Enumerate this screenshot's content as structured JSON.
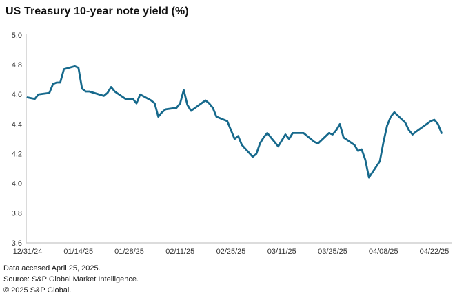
{
  "title": "US Treasury 10-year note yield (%)",
  "footer": {
    "line1": "Data accesed April 25, 2025.",
    "line2": "Source: S&P Global Market Intelligence.",
    "line3": "© 2025 S&P Global."
  },
  "colors": {
    "line": "#16698C",
    "axis": "#c6c6c6",
    "tick_text": "#333333"
  },
  "chart_data": {
    "type": "line",
    "title": "US Treasury 10-year note yield (%)",
    "xlabel": "",
    "ylabel": "",
    "ylim": [
      3.6,
      5.0
    ],
    "y_tick_labels": [
      "5.0",
      "4.8",
      "4.6",
      "4.4",
      "4.2",
      "4.0",
      "3.8",
      "3.6"
    ],
    "x_tick_labels": [
      "12/31/24",
      "01/14/25",
      "01/28/25",
      "02/11/25",
      "02/25/25",
      "03/11/25",
      "03/25/25",
      "04/08/25",
      "04/22/25"
    ],
    "grid": false,
    "legend": "none",
    "series": [
      {
        "name": "US Treasury 10-year note yield (%)",
        "dates": [
          "12/31/24",
          "01/02/25",
          "01/03/25",
          "01/06/25",
          "01/07/25",
          "01/08/25",
          "01/09/25",
          "01/10/25",
          "01/13/25",
          "01/14/25",
          "01/15/25",
          "01/16/25",
          "01/17/25",
          "01/21/25",
          "01/22/25",
          "01/23/25",
          "01/24/25",
          "01/27/25",
          "01/28/25",
          "01/29/25",
          "01/30/25",
          "01/31/25",
          "02/03/25",
          "02/04/25",
          "02/05/25",
          "02/06/25",
          "02/07/25",
          "02/10/25",
          "02/11/25",
          "02/12/25",
          "02/13/25",
          "02/14/25",
          "02/18/25",
          "02/19/25",
          "02/20/25",
          "02/21/25",
          "02/24/25",
          "02/25/25",
          "02/26/25",
          "02/27/25",
          "02/28/25",
          "03/03/25",
          "03/04/25",
          "03/05/25",
          "03/06/25",
          "03/07/25",
          "03/10/25",
          "03/11/25",
          "03/12/25",
          "03/13/25",
          "03/14/25",
          "03/17/25",
          "03/18/25",
          "03/19/25",
          "03/20/25",
          "03/21/25",
          "03/24/25",
          "03/25/25",
          "03/26/25",
          "03/27/25",
          "03/28/25",
          "03/31/25",
          "04/01/25",
          "04/02/25",
          "04/03/25",
          "04/04/25",
          "04/07/25",
          "04/08/25",
          "04/09/25",
          "04/10/25",
          "04/11/25",
          "04/14/25",
          "04/15/25",
          "04/16/25",
          "04/17/25",
          "04/21/25",
          "04/22/25",
          "04/23/25",
          "04/24/25"
        ],
        "values": [
          4.58,
          4.57,
          4.6,
          4.61,
          4.67,
          4.68,
          4.68,
          4.77,
          4.79,
          4.78,
          4.64,
          4.62,
          4.62,
          4.59,
          4.61,
          4.65,
          4.62,
          4.57,
          4.57,
          4.57,
          4.54,
          4.6,
          4.56,
          4.54,
          4.45,
          4.48,
          4.5,
          4.51,
          4.54,
          4.63,
          4.53,
          4.49,
          4.56,
          4.54,
          4.51,
          4.45,
          4.42,
          4.36,
          4.3,
          4.32,
          4.26,
          4.18,
          4.2,
          4.27,
          4.31,
          4.34,
          4.25,
          4.29,
          4.33,
          4.3,
          4.34,
          4.34,
          4.32,
          4.3,
          4.28,
          4.27,
          4.34,
          4.33,
          4.36,
          4.4,
          4.31,
          4.26,
          4.22,
          4.23,
          4.16,
          4.04,
          4.15,
          4.28,
          4.39,
          4.45,
          4.48,
          4.41,
          4.36,
          4.33,
          4.35,
          4.42,
          4.43,
          4.4,
          4.34
        ]
      }
    ]
  }
}
